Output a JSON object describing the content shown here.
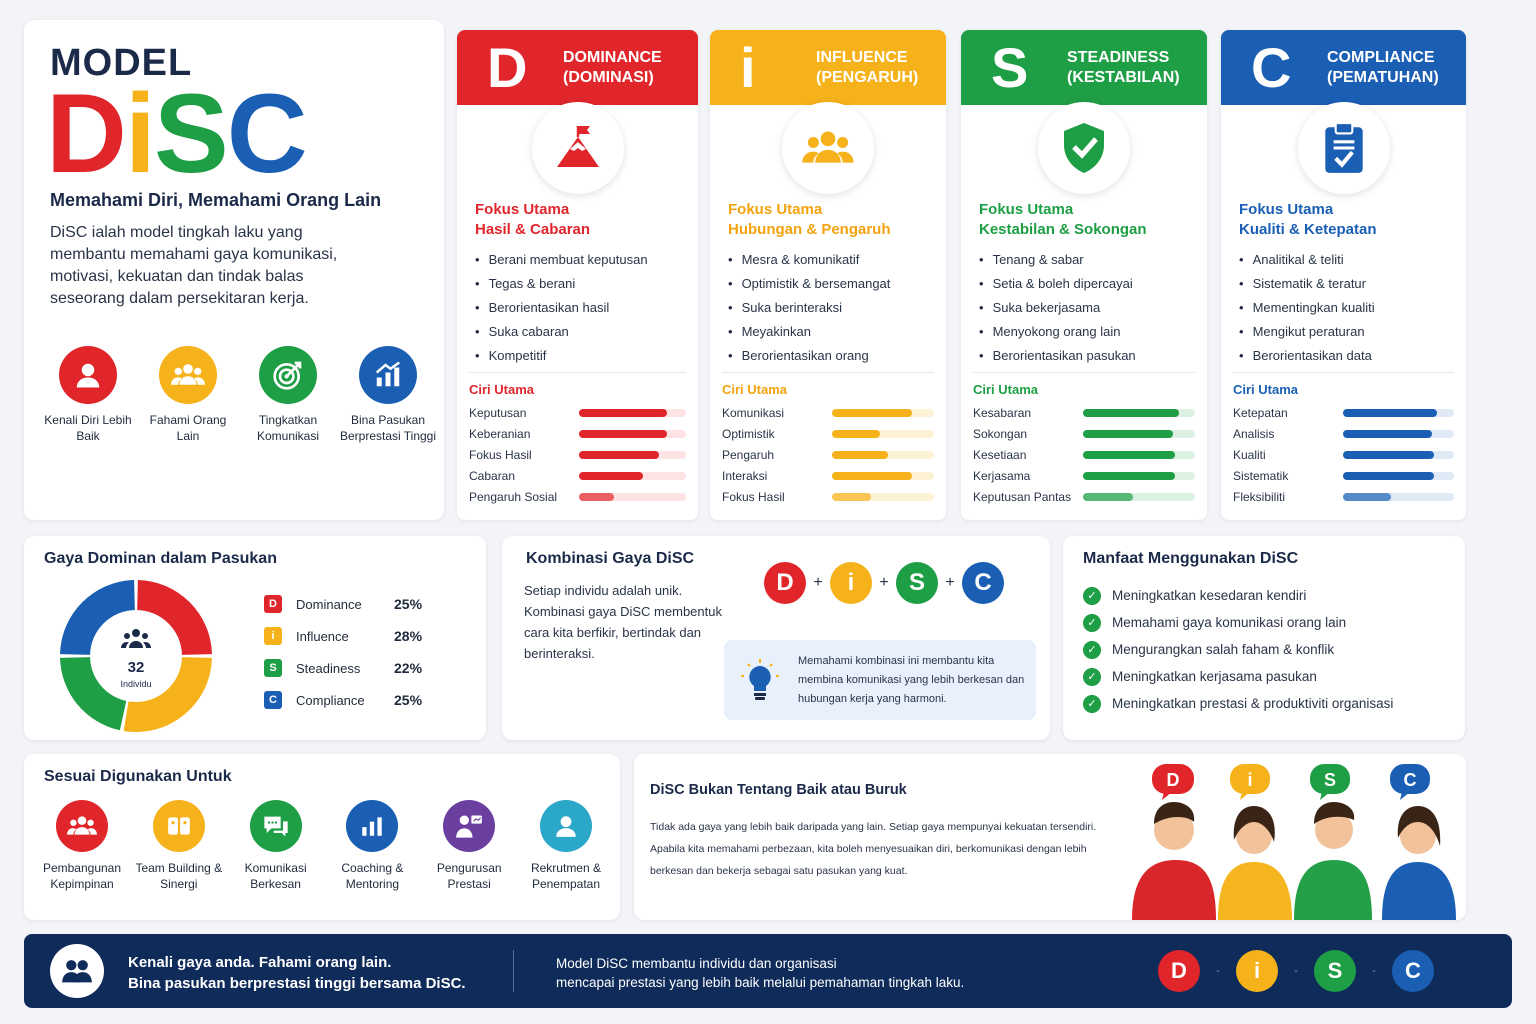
{
  "colors": {
    "d": "#e0262b",
    "i": "#f6b21b",
    "s": "#1e9e45",
    "c": "#1a5fb4",
    "navy": "#0e2b5a"
  },
  "hero": {
    "model": "MODEL",
    "logo": {
      "d": "D",
      "i": "i",
      "s": "S",
      "c": "C"
    },
    "tagline": "Memahami Diri, Memahami Orang Lain",
    "description": "DiSC ialah model tingkah laku yang membantu memahami gaya komunikasi, motivasi, kekuatan dan tindak balas seseorang dalam persekitaran kerja.",
    "benefits": [
      {
        "label": "Kenali Diri Lebih Baik",
        "icon": "person-icon",
        "color": "#e0262b"
      },
      {
        "label": "Fahami Orang Lain",
        "icon": "group-icon",
        "color": "#f6b21b"
      },
      {
        "label": "Tingkatkan Komunikasi",
        "icon": "target-icon",
        "color": "#1e9e45"
      },
      {
        "label": "Bina Pasukan Berprestasi Tinggi",
        "icon": "growth-chart-icon",
        "color": "#1a5fb4"
      }
    ]
  },
  "styles": [
    {
      "key": "d",
      "letter": "D",
      "name": "DOMINANCE",
      "sub": "(DOMINASI)",
      "icon": "mountain-flag-icon",
      "focus_label": "Fokus Utama",
      "focus": "Hasil & Cabaran",
      "bullets": [
        "Berani membuat keputusan",
        "Tegas & berani",
        "Berorientasikan hasil",
        "Suka cabaran",
        "Kompetitif"
      ],
      "ciri": "Ciri Utama",
      "traits": [
        {
          "name": "Keputusan",
          "value": 0.82
        },
        {
          "name": "Keberanian",
          "value": 0.82
        },
        {
          "name": "Fokus Hasil",
          "value": 0.75
        },
        {
          "name": "Cabaran",
          "value": 0.6
        },
        {
          "name": "Pengaruh Sosial",
          "value": 0.33
        }
      ]
    },
    {
      "key": "i",
      "letter": "i",
      "name": "INFLUENCE",
      "sub": "(PENGARUH)",
      "icon": "people-group-icon",
      "focus_label": "Fokus Utama",
      "focus": "Hubungan & Pengaruh",
      "bullets": [
        "Mesra & komunikatif",
        "Optimistik & bersemangat",
        "Suka berinteraksi",
        "Meyakinkan",
        "Berorientasikan orang"
      ],
      "ciri": "Ciri Utama",
      "traits": [
        {
          "name": "Komunikasi",
          "value": 0.78
        },
        {
          "name": "Optimistik",
          "value": 0.47
        },
        {
          "name": "Pengaruh",
          "value": 0.55
        },
        {
          "name": "Interaksi",
          "value": 0.78
        },
        {
          "name": "Fokus Hasil",
          "value": 0.38
        }
      ]
    },
    {
      "key": "s",
      "letter": "S",
      "name": "STEADINESS",
      "sub": "(KESTABILAN)",
      "icon": "shield-check-icon",
      "focus_label": "Fokus Utama",
      "focus": "Kestabilan & Sokongan",
      "bullets": [
        "Tenang & sabar",
        "Setia & boleh dipercayai",
        "Suka bekerjasama",
        "Menyokong orang lain",
        "Berorientasikan pasukan"
      ],
      "ciri": "Ciri Utama",
      "traits": [
        {
          "name": "Kesabaran",
          "value": 0.86
        },
        {
          "name": "Sokongan",
          "value": 0.8
        },
        {
          "name": "Kesetiaan",
          "value": 0.82
        },
        {
          "name": "Kerjasama",
          "value": 0.82
        },
        {
          "name": "Keputusan Pantas",
          "value": 0.45
        }
      ]
    },
    {
      "key": "c",
      "letter": "C",
      "name": "COMPLIANCE",
      "sub": "(PEMATUHAN)",
      "icon": "clipboard-check-icon",
      "focus_label": "Fokus Utama",
      "focus": "Kualiti & Ketepatan",
      "bullets": [
        "Analitikal & teliti",
        "Sistematik & teratur",
        "Mementingkan kualiti",
        "Mengikut peraturan",
        "Berorientasikan data"
      ],
      "ciri": "Ciri Utama",
      "traits": [
        {
          "name": "Ketepatan",
          "value": 0.85
        },
        {
          "name": "Analisis",
          "value": 0.8
        },
        {
          "name": "Kualiti",
          "value": 0.82
        },
        {
          "name": "Sistematik",
          "value": 0.82
        },
        {
          "name": "Fleksibiliti",
          "value": 0.43
        }
      ]
    }
  ],
  "gaya": {
    "title": "Gaya Dominan dalam Pasukan",
    "center_count": "32",
    "center_label": "Individu",
    "segments": [
      {
        "key": "D",
        "name": "Dominance",
        "pct": "25%",
        "value": 25,
        "color": "#e0262b"
      },
      {
        "key": "i",
        "name": "Influence",
        "pct": "28%",
        "value": 28,
        "color": "#f6b21b"
      },
      {
        "key": "S",
        "name": "Steadiness",
        "pct": "22%",
        "value": 22,
        "color": "#1e9e45"
      },
      {
        "key": "C",
        "name": "Compliance",
        "pct": "25%",
        "value": 25,
        "color": "#1a5fb4"
      }
    ]
  },
  "kombinasi": {
    "title": "Kombinasi Gaya DiSC",
    "text": "Setiap individu adalah unik. Kombinasi gaya DiSC membentuk cara kita berfikir, bertindak dan berinteraksi.",
    "letters": [
      "D",
      "i",
      "S",
      "C"
    ],
    "plus": "+",
    "tip": "Memahami kombinasi ini membantu kita membina komunikasi yang lebih berkesan dan hubungan kerja yang harmoni."
  },
  "manfaat": {
    "title": "Manfaat Menggunakan DiSC",
    "items": [
      "Meningkatkan kesedaran kendiri",
      "Memahami gaya komunikasi orang lain",
      "Mengurangkan salah faham & konflik",
      "Meningkatkan kerjasama pasukan",
      "Meningkatkan prestasi & produktiviti organisasi"
    ]
  },
  "sesuai": {
    "title": "Sesuai Digunakan Untuk",
    "items": [
      {
        "label": "Pembangunan Kepimpinan",
        "icon": "leaders-icon",
        "color": "#e0262b"
      },
      {
        "label": "Team Building & Sinergi",
        "icon": "puzzle-icon",
        "color": "#f6b21b"
      },
      {
        "label": "Komunikasi Berkesan",
        "icon": "chat-bubbles-icon",
        "color": "#1e9e45"
      },
      {
        "label": "Coaching & Mentoring",
        "icon": "bar-chart-icon",
        "color": "#1a5fb4"
      },
      {
        "label": "Pengurusan Prestasi",
        "icon": "presenter-icon",
        "color": "#6b3fa0"
      },
      {
        "label": "Rekrutmen & Penempatan",
        "icon": "user-search-icon",
        "color": "#2aa7c9"
      }
    ]
  },
  "bukan": {
    "title": "DiSC Bukan Tentang Baik atau Buruk",
    "text": "Tidak ada gaya yang lebih baik daripada yang lain. Setiap gaya mempunyai kekuatan tersendiri. Apabila kita memahami perbezaan, kita boleh menyesuaikan diri, berkomunikasi dengan lebih berkesan dan bekerja sebagai satu pasukan yang kuat.",
    "bubbles": [
      "D",
      "i",
      "S",
      "C"
    ]
  },
  "footer": {
    "line1": "Kenali gaya anda. Fahami orang lain.",
    "line2": "Bina pasukan berprestasi tinggi bersama DiSC.",
    "right1": "Model DiSC membantu individu dan organisasi",
    "right2": "mencapai prestasi yang lebih baik melalui pemahaman tingkah laku.",
    "letters": [
      "D",
      "i",
      "S",
      "C"
    ],
    "sep": "-"
  }
}
